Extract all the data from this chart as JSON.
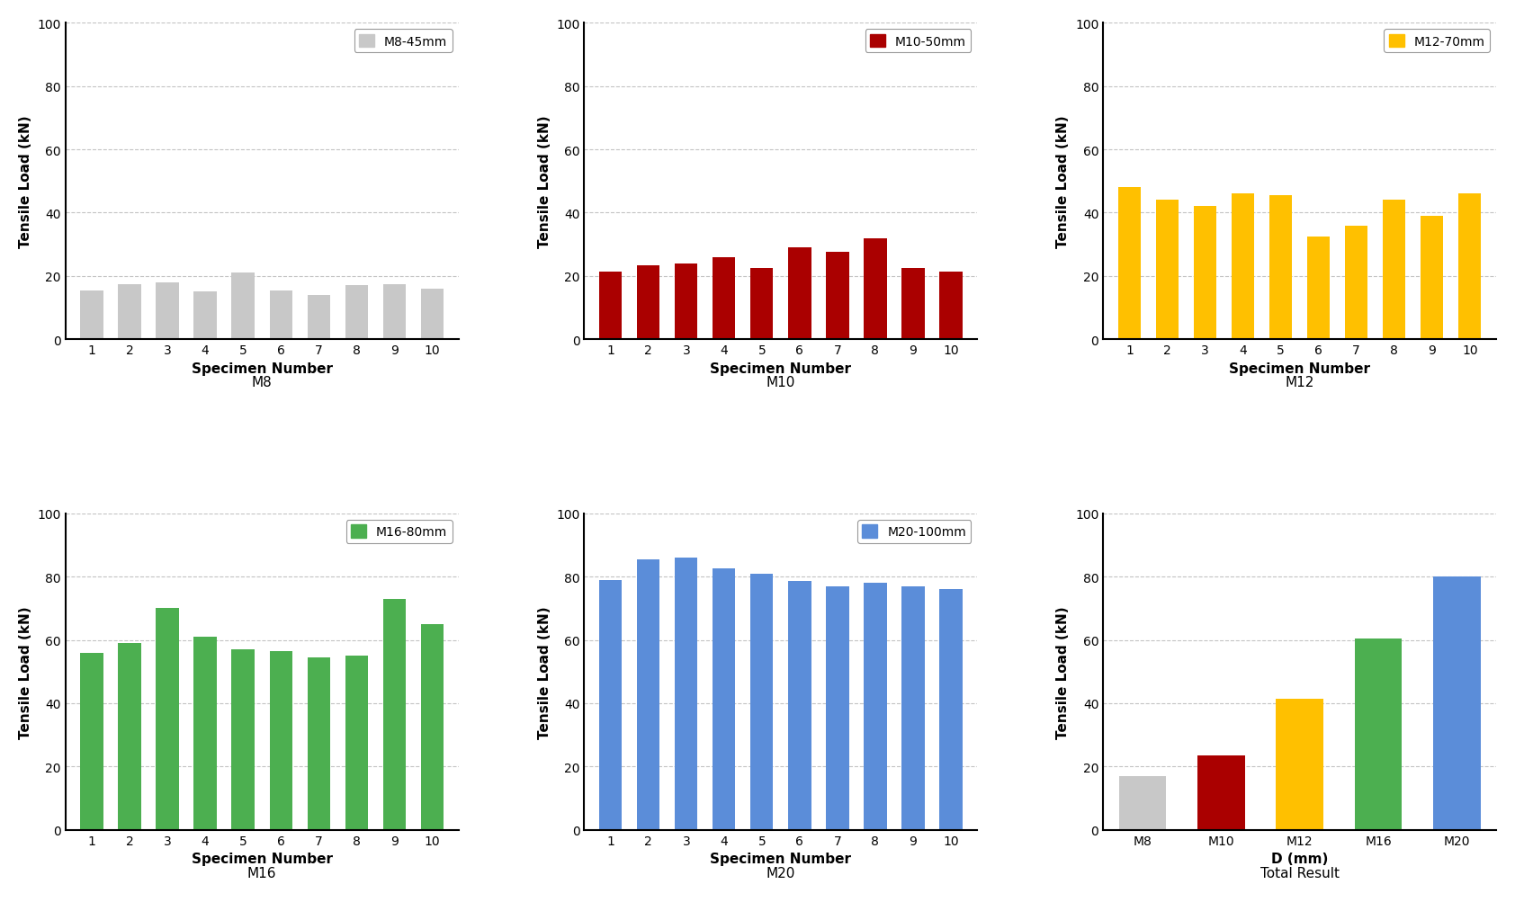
{
  "m8": {
    "values": [
      15.5,
      17.5,
      18.0,
      15.0,
      21.0,
      15.5,
      14.0,
      17.0,
      17.5,
      16.0
    ],
    "color": "#C8C8C8",
    "label": "M8-45mm",
    "title": "M8",
    "xlabel": "Specimen Number",
    "ylabel": "Tensile Load (kN)",
    "ylim": [
      0,
      100
    ]
  },
  "m10": {
    "values": [
      21.5,
      23.5,
      24.0,
      26.0,
      22.5,
      29.0,
      27.5,
      32.0,
      22.5,
      21.5
    ],
    "color": "#AA0000",
    "label": "M10-50mm",
    "title": "M10",
    "xlabel": "Specimen Number",
    "ylabel": "Tensile Load (kN)",
    "ylim": [
      0,
      100
    ]
  },
  "m12": {
    "values": [
      48.0,
      44.0,
      42.0,
      46.0,
      45.5,
      32.5,
      36.0,
      44.0,
      39.0,
      46.0
    ],
    "color": "#FFC000",
    "label": "M12-70mm",
    "title": "M12",
    "xlabel": "Specimen Number",
    "ylabel": "Tensile Load (kN)",
    "ylim": [
      0,
      100
    ]
  },
  "m16": {
    "values": [
      56.0,
      59.0,
      70.0,
      61.0,
      57.0,
      56.5,
      54.5,
      55.0,
      73.0,
      65.0
    ],
    "color": "#4CAF50",
    "label": "M16-80mm",
    "title": "M16",
    "xlabel": "Specimen Number",
    "ylabel": "Tensile Load (kN)",
    "ylim": [
      0,
      100
    ]
  },
  "m20": {
    "values": [
      79.0,
      85.5,
      86.0,
      82.5,
      81.0,
      78.5,
      77.0,
      78.0,
      77.0,
      76.0
    ],
    "color": "#5B8DD9",
    "label": "M20-100mm",
    "title": "M20",
    "xlabel": "Specimen Number",
    "ylabel": "Tensile Load (kN)",
    "ylim": [
      0,
      100
    ]
  },
  "total": {
    "categories": [
      "M8",
      "M10",
      "M12",
      "M16",
      "M20"
    ],
    "values": [
      17.0,
      23.5,
      41.5,
      60.5,
      80.0
    ],
    "colors": [
      "#C8C8C8",
      "#AA0000",
      "#FFC000",
      "#4CAF50",
      "#5B8DD9"
    ],
    "title": "Total Result",
    "xlabel": "D (mm)",
    "ylabel": "Tensile Load (kN)",
    "ylim": [
      0,
      100
    ]
  },
  "grid_color": "#AAAAAA",
  "grid_linestyle": "--",
  "grid_alpha": 0.7,
  "yticks": [
    0,
    20,
    40,
    60,
    80,
    100
  ],
  "axis_label_fontsize": 11,
  "tick_fontsize": 10,
  "legend_fontsize": 10,
  "caption_fontsize": 11
}
